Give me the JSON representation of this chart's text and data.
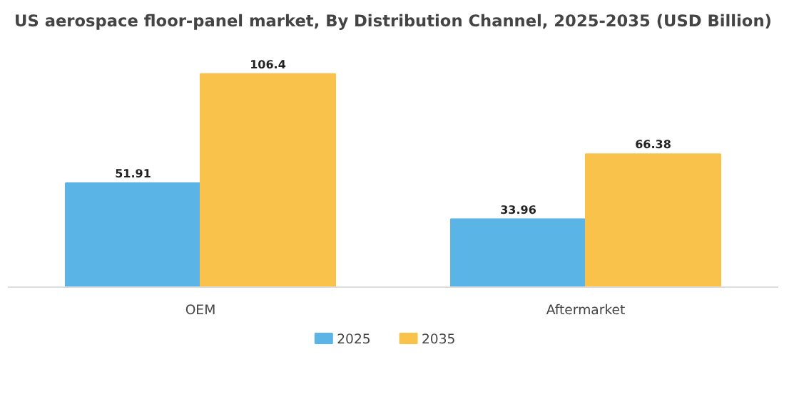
{
  "chart_data": {
    "type": "bar",
    "title": "US aerospace floor-panel market, By Distribution Channel, 2025-2035 (USD Billion)",
    "categories": [
      "OEM",
      "Aftermarket"
    ],
    "series": [
      {
        "name": "2025",
        "color": "#5ab4e5",
        "values": [
          51.91,
          33.96
        ]
      },
      {
        "name": "2035",
        "color": "#f9c34b",
        "values": [
          106.4,
          66.38
        ]
      }
    ],
    "data_labels": true,
    "legend": "bottom"
  }
}
